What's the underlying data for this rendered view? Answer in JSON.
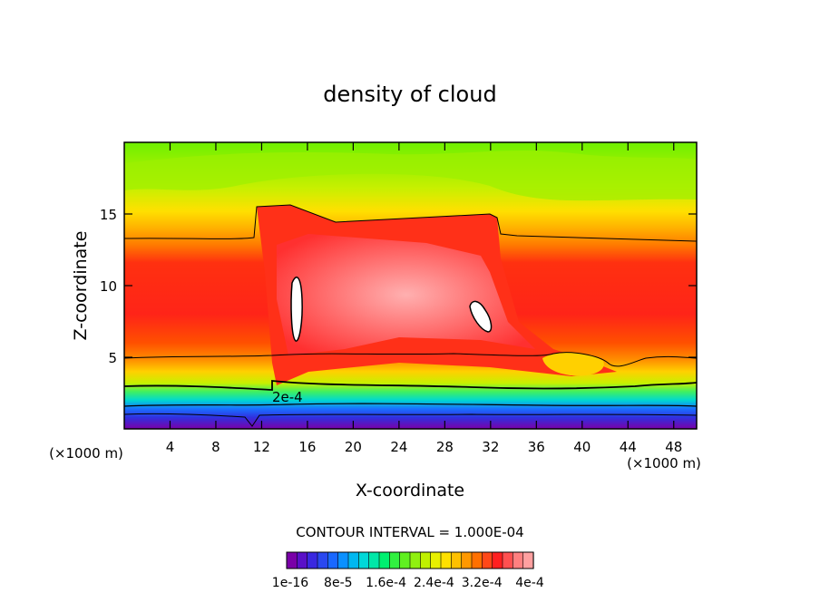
{
  "chart_data": {
    "type": "heatmap",
    "title": "density of cloud",
    "xlabel": "X-coordinate",
    "ylabel": "Z-coordinate",
    "x_unit_left": "(×1000 m)",
    "x_unit_right": "(×1000 m)",
    "xlim": [
      0,
      50
    ],
    "ylim": [
      0,
      20
    ],
    "x_ticks": [
      4,
      8,
      12,
      16,
      20,
      24,
      28,
      32,
      36,
      40,
      44,
      48
    ],
    "x_tick_labels": [
      "4",
      "8",
      "12",
      "16",
      "20",
      "24",
      "28",
      "32",
      "36",
      "40",
      "44",
      "48"
    ],
    "y_ticks": [
      5,
      10,
      15
    ],
    "y_tick_labels": [
      "5",
      "10",
      "15"
    ],
    "contour_label": "2e-4",
    "contour_interval_text": "CONTOUR INTERVAL = 1.000E-04",
    "colorbar_labels": [
      "1e-16",
      "8e-5",
      "1.6e-4",
      "2.4e-4",
      "3.2e-4",
      "4e-4"
    ],
    "colorbar_label_values": [
      1e-16,
      8e-05,
      0.00016,
      0.00024,
      0.00032,
      0.0004
    ],
    "colorbar_colors": [
      "#7a00a8",
      "#5a10c8",
      "#3a28e0",
      "#2a48f0",
      "#1a68ff",
      "#0a90ff",
      "#00b8f0",
      "#00d8d8",
      "#00e8a8",
      "#00f070",
      "#30f040",
      "#60f020",
      "#90f010",
      "#c0f000",
      "#e8f000",
      "#ffe000",
      "#ffc000",
      "#ff9800",
      "#ff7000",
      "#ff4818",
      "#ff2020",
      "#ff5050",
      "#ff8080",
      "#ffa0a0"
    ]
  }
}
